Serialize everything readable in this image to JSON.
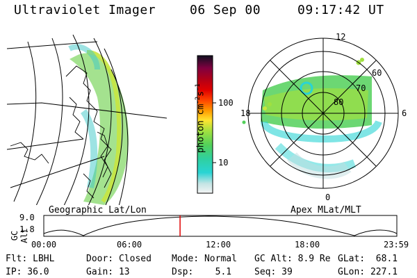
{
  "header": {
    "instrument": "Ultraviolet Imager",
    "date": "06 Sep 00",
    "time": "09:17:42 UT"
  },
  "colorbar": {
    "unit_label": "photon cm",
    "unit_exp1": "-2",
    "unit_mid": "s",
    "unit_exp2": "-1",
    "tick_100": "100",
    "tick_10": "10",
    "stops": [
      "#e8eef2",
      "#b4dcdc",
      "#29d4d4",
      "#2fd0a0",
      "#52d05a",
      "#a0e040",
      "#d8ea30",
      "#ffe430",
      "#ff9a00",
      "#ff4a00",
      "#e00000",
      "#b00018",
      "#800040",
      "#3a0060",
      "#101020"
    ]
  },
  "left_map": {
    "caption": "Geographic Lat/Lon"
  },
  "right_map": {
    "caption": "Apex MLat/MLT",
    "lat_labels": [
      "80",
      "70",
      "60"
    ],
    "mlt_labels": {
      "top": "12",
      "bottom": "0",
      "left": "18",
      "right": "6"
    }
  },
  "altitude_plot": {
    "axis_label": "GC Alt",
    "y_ticks": [
      "9.0",
      "1.8"
    ],
    "time_ticks": [
      "00:00",
      "06:00",
      "12:00",
      "18:00",
      "23:59"
    ],
    "current_time_fraction": 0.386
  },
  "footer": {
    "row1": {
      "flt": "Flt: LBHL",
      "door": "Door: Closed",
      "mode": "Mode: Normal",
      "gcalt": "GC Alt: 8.9 Re",
      "glat": "GLat:  68.1"
    },
    "row2": {
      "ip": "IP: 36.0",
      "gain": "Gain: 13",
      "dsp": "Dsp:    5.1",
      "seq": "Seq: 39",
      "glon": "GLon: 227.1"
    }
  }
}
